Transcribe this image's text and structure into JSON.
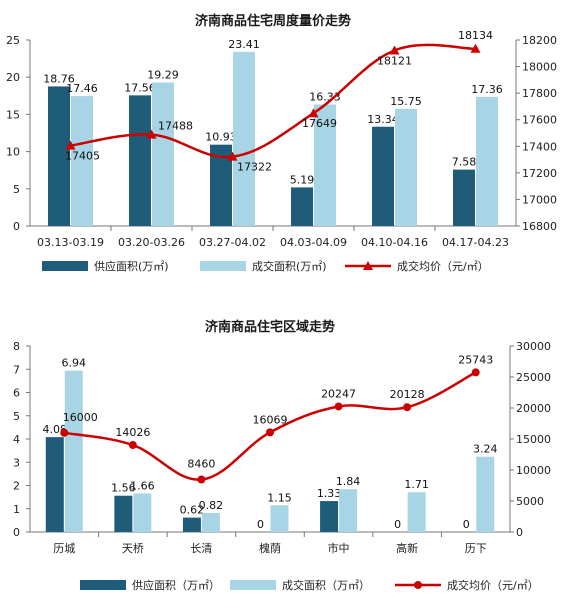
{
  "chart_data": [
    {
      "type": "bar",
      "title": "济南商品住宅周度量价走势",
      "categories": [
        "03.13-03.19",
        "03.20-03.26",
        "03.27-04.02",
        "04.03-04.09",
        "04.10-04.16",
        "04.17-04.23"
      ],
      "series": [
        {
          "name": "供应面积(万㎡)",
          "type": "bar",
          "axis": "left",
          "color": "#1f5c7a",
          "values": [
            18.76,
            17.56,
            10.93,
            5.19,
            13.34,
            7.58
          ]
        },
        {
          "name": "成交面积(万㎡)",
          "type": "bar",
          "axis": "left",
          "color": "#a8d5e5",
          "values": [
            17.46,
            19.29,
            23.41,
            16.33,
            15.75,
            17.36
          ]
        },
        {
          "name": "成交均价（元/㎡）",
          "type": "line",
          "axis": "right",
          "color": "#cc0000",
          "values": [
            17405,
            17488,
            17322,
            17649,
            18121,
            18134
          ]
        }
      ],
      "ylim_left": [
        0,
        25
      ],
      "yticks_left": [
        0,
        5,
        10,
        15,
        20,
        25
      ],
      "ylim_right": [
        16800,
        18200
      ],
      "yticks_right": [
        16800,
        17000,
        17200,
        17400,
        17600,
        17800,
        18000,
        18200
      ],
      "grid": false,
      "legend_position": "bottom"
    },
    {
      "type": "bar",
      "title": "济南商品住宅区域走势",
      "categories": [
        "历城",
        "天桥",
        "长清",
        "槐荫",
        "市中",
        "高新",
        "历下"
      ],
      "series": [
        {
          "name": "供应面积（万㎡）",
          "type": "bar",
          "axis": "left",
          "color": "#1f5c7a",
          "values": [
            4.08,
            1.56,
            0.62,
            0,
            1.33,
            0,
            0
          ]
        },
        {
          "name": "成交面积（万㎡）",
          "type": "bar",
          "axis": "left",
          "color": "#a8d5e5",
          "values": [
            6.94,
            1.66,
            0.82,
            1.15,
            1.84,
            1.71,
            3.24
          ]
        },
        {
          "name": "成交均价（元/㎡）",
          "type": "line",
          "axis": "right",
          "color": "#cc0000",
          "values": [
            16000,
            14026,
            8460,
            16069,
            20247,
            20128,
            25743
          ]
        }
      ],
      "ylim_left": [
        0,
        8
      ],
      "yticks_left": [
        0,
        1,
        2,
        3,
        4,
        5,
        6,
        7,
        8
      ],
      "ylim_right": [
        0,
        30000
      ],
      "yticks_right": [
        0,
        5000,
        10000,
        15000,
        20000,
        25000,
        30000
      ],
      "grid": false,
      "legend_position": "bottom"
    }
  ]
}
